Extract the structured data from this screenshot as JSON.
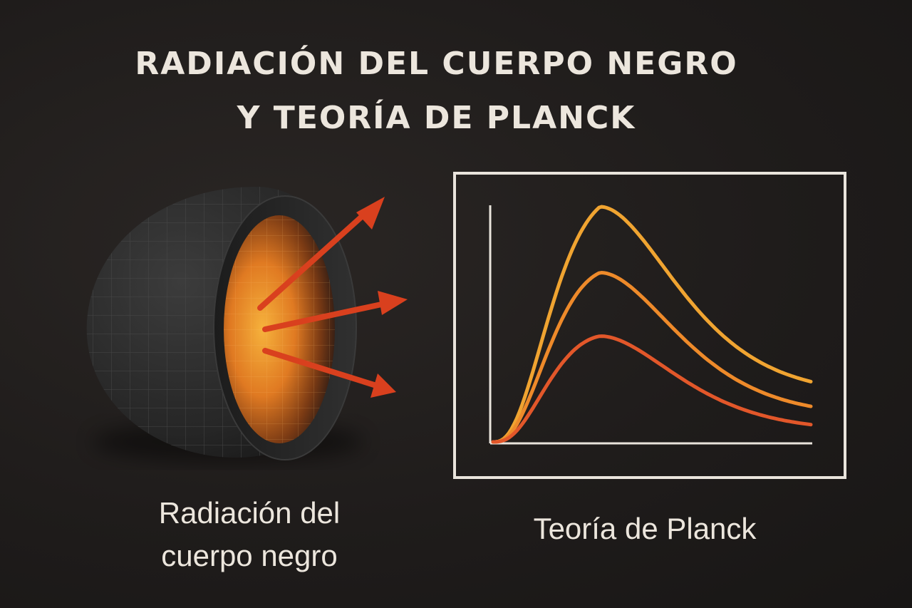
{
  "title": {
    "line1": "RADIACIÓN DEL CUERPO NEGRO",
    "line2": "Y TEORÍA DE PLANCK"
  },
  "captions": {
    "blackbody_line1": "Radiación del",
    "blackbody_line2": "cuerpo negro",
    "planck": "Teoría de Planck"
  },
  "colors": {
    "background": "#1f1c1b",
    "text": "#ece6dd",
    "frame": "#e9e4dc",
    "arrow": "#d9401e",
    "curve_high": "#f0a431",
    "curve_mid": "#ee8a2a",
    "curve_low": "#e2572a",
    "cavity_glow": "#f2a236",
    "shell": "#2b2b2b"
  },
  "diagram": {
    "arrows": 3,
    "curves": [
      {
        "name": "curve_high",
        "peak": 1.0,
        "color_key": "curve_high"
      },
      {
        "name": "curve_mid",
        "peak": 0.72,
        "color_key": "curve_mid"
      },
      {
        "name": "curve_low",
        "peak": 0.45,
        "color_key": "curve_low"
      }
    ]
  }
}
